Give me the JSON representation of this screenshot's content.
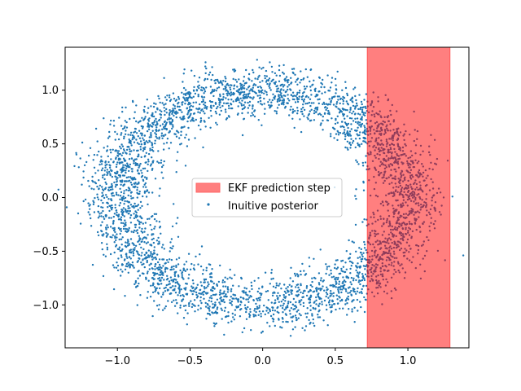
{
  "chart_data": {
    "type": "scatter",
    "xlim": [
      -1.36,
      1.42
    ],
    "ylim": [
      -1.4,
      1.4
    ],
    "xticks": [
      -1.0,
      -0.5,
      0.0,
      0.5,
      1.0
    ],
    "xtick_labels": [
      "−1.0",
      "−0.5",
      "0.0",
      "0.5",
      "1.0"
    ],
    "yticks": [
      -1.0,
      -0.5,
      0.0,
      0.5,
      1.0
    ],
    "ytick_labels": [
      "−1.0",
      "−0.5",
      "0.0",
      "0.5",
      "1.0"
    ],
    "grid": false,
    "legend_position": "center",
    "series": [
      {
        "name": "Inuitive posterior",
        "kind": "scatter",
        "color": "#1f77b4",
        "n_points": 4000,
        "distribution": "noisy unit circle",
        "center": [
          0,
          0
        ],
        "radius": 1.0,
        "radial_noise_std": 0.12
      }
    ],
    "band": {
      "name": "EKF prediction step",
      "kind": "vertical_span",
      "x_range": [
        0.72,
        1.29
      ],
      "color": "#ff0000",
      "alpha": 0.5
    }
  },
  "legend": {
    "items": [
      {
        "label": "EKF prediction step",
        "color": "#ff7f7f"
      },
      {
        "label": "Inuitive posterior",
        "color": "#1f77b4"
      }
    ]
  }
}
